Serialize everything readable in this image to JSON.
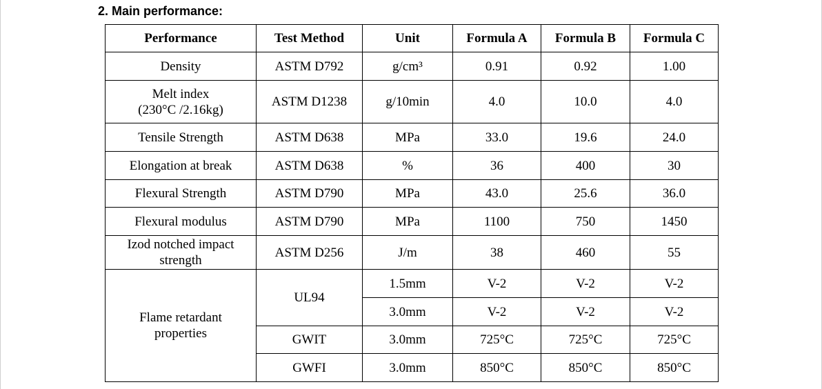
{
  "heading": "2. Main performance:",
  "columns": [
    "Performance",
    "Test Method",
    "Unit",
    "Formula A",
    "Formula B",
    "Formula C"
  ],
  "rows": [
    {
      "performance": "Density",
      "method": "ASTM D792",
      "unit": "g/cm³",
      "a": "0.91",
      "b": "0.92",
      "c": "1.00"
    },
    {
      "performance_line1": "Melt index",
      "performance_line2": "(230°C /2.16kg)",
      "method": "ASTM D1238",
      "unit": "g/10min",
      "a": "4.0",
      "b": "10.0",
      "c": "4.0"
    },
    {
      "performance": "Tensile Strength",
      "method": "ASTM D638",
      "unit": "MPa",
      "a": "33.0",
      "b": "19.6",
      "c": "24.0"
    },
    {
      "performance": "Elongation at break",
      "method": "ASTM D638",
      "unit": "%",
      "a": "36",
      "b": "400",
      "c": "30"
    },
    {
      "performance": "Flexural Strength",
      "method": "ASTM D790",
      "unit": "MPa",
      "a": "43.0",
      "b": "25.6",
      "c": "36.0"
    },
    {
      "performance": "Flexural modulus",
      "method": "ASTM D790",
      "unit": "MPa",
      "a": "1100",
      "b": "750",
      "c": "1450"
    },
    {
      "performance_line1": "Izod notched impact",
      "performance_line2": "strength",
      "method": "ASTM D256",
      "unit": "J/m",
      "a": "38",
      "b": "460",
      "c": "55"
    }
  ],
  "flame": {
    "performance_line1": "Flame retardant",
    "performance_line2": "properties",
    "ul94": {
      "method": "UL94",
      "rows": [
        {
          "unit": "1.5mm",
          "a": "V-2",
          "b": "V-2",
          "c": "V-2"
        },
        {
          "unit": "3.0mm",
          "a": "V-2",
          "b": "V-2",
          "c": "V-2"
        }
      ]
    },
    "gwit": {
      "method": "GWIT",
      "unit": "3.0mm",
      "a": "725°C",
      "b": "725°C",
      "c": "725°C"
    },
    "gwfi": {
      "method": "GWFI",
      "unit": "3.0mm",
      "a": "850°C",
      "b": "850°C",
      "c": "850°C"
    }
  }
}
